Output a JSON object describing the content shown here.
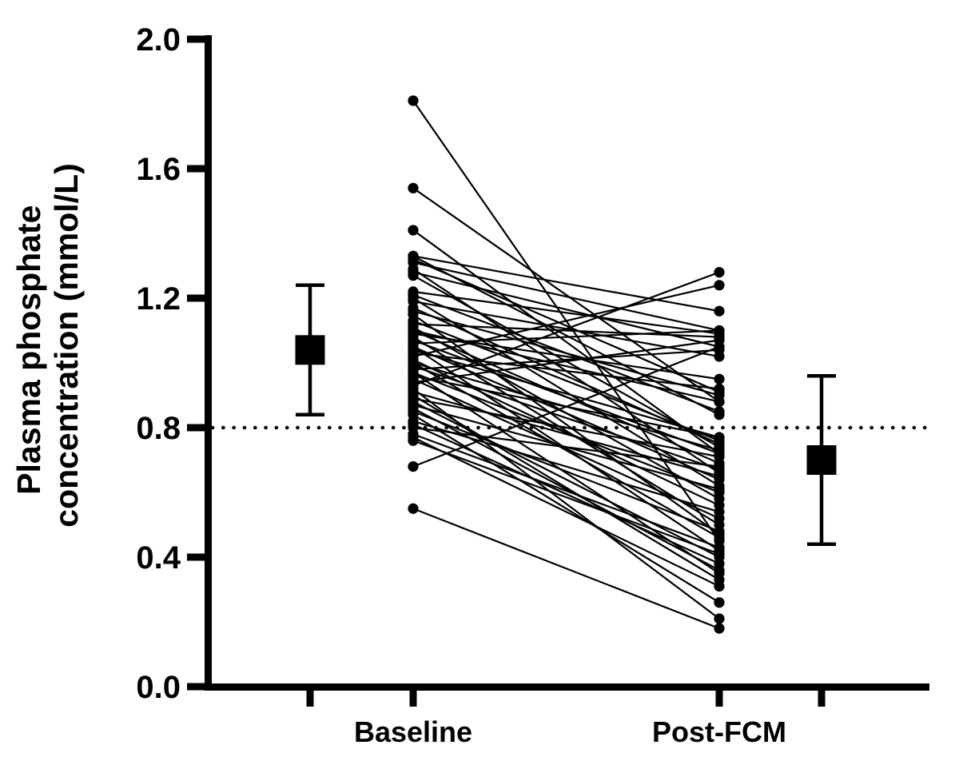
{
  "figure": {
    "background": "#ffffff",
    "ink_color": "#000000"
  },
  "chart_data": {
    "type": "scatter",
    "subtype": "paired-before-after-lines-with-mean-sd",
    "title": "",
    "ylabel_lines": [
      "Plasma phosphate",
      "concentration (mmol/L)"
    ],
    "xlabel": "",
    "categories": [
      "Baseline",
      "Post-FCM"
    ],
    "ylim": [
      0.0,
      2.0
    ],
    "y_tick_labels": [
      "0.0",
      "0.4",
      "0.8",
      "1.2",
      "1.6",
      "2.0"
    ],
    "grid": "off",
    "legend": "none",
    "reference_line": {
      "value": 0.8,
      "style": "dotted",
      "color": "#000000"
    },
    "summary": [
      {
        "group": "Baseline",
        "marker": "square",
        "mean": 1.04,
        "upper": 1.24,
        "lower": 0.84
      },
      {
        "group": "Post-FCM",
        "marker": "square",
        "mean": 0.7,
        "upper": 0.96,
        "lower": 0.44
      }
    ],
    "pairs": [
      [
        1.81,
        0.45
      ],
      [
        1.54,
        0.88
      ],
      [
        1.41,
        0.72
      ],
      [
        1.33,
        1.16
      ],
      [
        1.33,
        0.84
      ],
      [
        1.32,
        0.91
      ],
      [
        1.31,
        1.1
      ],
      [
        1.29,
        0.66
      ],
      [
        1.28,
        1.05
      ],
      [
        1.27,
        0.74
      ],
      [
        1.22,
        1.09
      ],
      [
        1.21,
        0.85
      ],
      [
        1.2,
        0.62
      ],
      [
        1.19,
        1.02
      ],
      [
        1.17,
        0.75
      ],
      [
        1.16,
        0.9
      ],
      [
        1.15,
        0.47
      ],
      [
        1.13,
        0.76
      ],
      [
        1.12,
        1.08
      ],
      [
        1.11,
        0.58
      ],
      [
        1.1,
        0.88
      ],
      [
        1.1,
        0.69
      ],
      [
        1.09,
        0.95
      ],
      [
        1.08,
        0.5
      ],
      [
        1.07,
        0.72
      ],
      [
        1.06,
        1.1
      ],
      [
        1.05,
        0.64
      ],
      [
        1.05,
        0.42
      ],
      [
        1.04,
        0.77
      ],
      [
        1.03,
        0.92
      ],
      [
        1.02,
        1.24
      ],
      [
        1.01,
        0.56
      ],
      [
        1.0,
        0.73
      ],
      [
        1.0,
        0.46
      ],
      [
        0.99,
        0.67
      ],
      [
        0.98,
        1.04
      ],
      [
        0.97,
        0.6
      ],
      [
        0.97,
        0.35
      ],
      [
        0.96,
        0.77
      ],
      [
        0.95,
        0.52
      ],
      [
        0.94,
        1.07
      ],
      [
        0.93,
        1.28
      ],
      [
        0.92,
        0.21
      ],
      [
        0.91,
        0.65
      ],
      [
        0.9,
        0.33
      ],
      [
        0.89,
        0.71
      ],
      [
        0.88,
        0.4
      ],
      [
        0.87,
        0.61
      ],
      [
        0.86,
        0.36
      ],
      [
        0.85,
        0.48
      ],
      [
        0.84,
        0.26
      ],
      [
        0.82,
        0.54
      ],
      [
        0.81,
        0.38
      ],
      [
        0.8,
        0.68
      ],
      [
        0.78,
        0.43
      ],
      [
        0.77,
        0.31
      ],
      [
        0.76,
        0.41
      ],
      [
        0.68,
        1.05
      ],
      [
        0.55,
        0.18
      ]
    ]
  }
}
